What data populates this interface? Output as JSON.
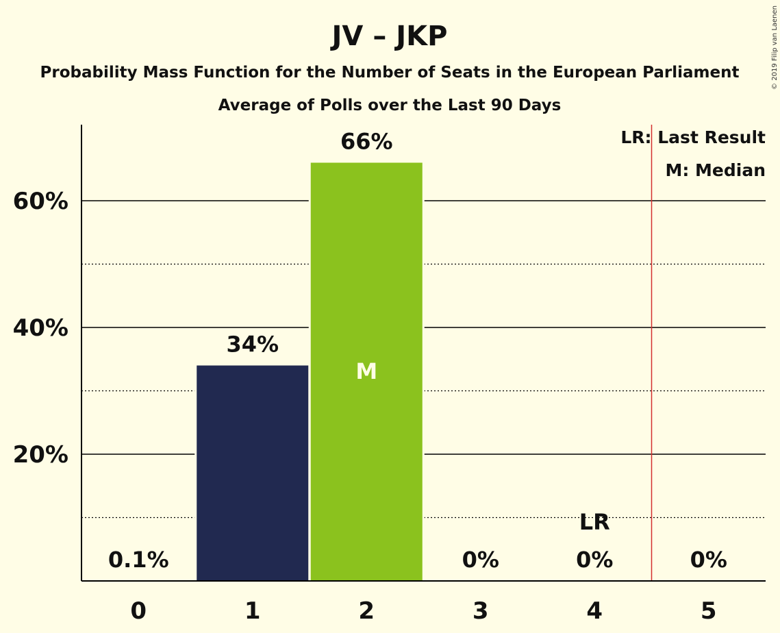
{
  "title": "JV – JKP",
  "subtitle": "Probability Mass Function for the Number of Seats in the European Parliament",
  "subtitle2": "Average of Polls over the Last 90 Days",
  "copyright": "© 2019 Filip van Laenen",
  "legend": {
    "lr": "LR: Last Result",
    "median": "M: Median"
  },
  "colors": {
    "background": "#fffde6",
    "bar_dark": "#212950",
    "bar_green": "#8bc21e",
    "last_result_line": "#d32f2f",
    "axis": "#000000"
  },
  "chart_data": {
    "type": "bar",
    "categories": [
      "0",
      "1",
      "2",
      "3",
      "4",
      "5"
    ],
    "values": [
      0.1,
      34,
      66,
      0,
      0,
      0
    ],
    "value_labels": [
      "0.1%",
      "34%",
      "66%",
      "0%",
      "0%",
      "0%"
    ],
    "bar_colors": [
      "#212950",
      "#212950",
      "#8bc21e",
      "#212950",
      "#212950",
      "#212950"
    ],
    "ylim": [
      0,
      72
    ],
    "yticks": [
      20,
      40,
      60
    ],
    "ytick_labels": [
      "20%",
      "40%",
      "60%"
    ],
    "minor_gridlines": [
      10,
      30,
      50
    ],
    "median_category": "2",
    "median_label": "M",
    "last_result_category": "4",
    "last_result_label": "LR",
    "last_result_line_at": 4.5,
    "legend_position": "top-right"
  }
}
